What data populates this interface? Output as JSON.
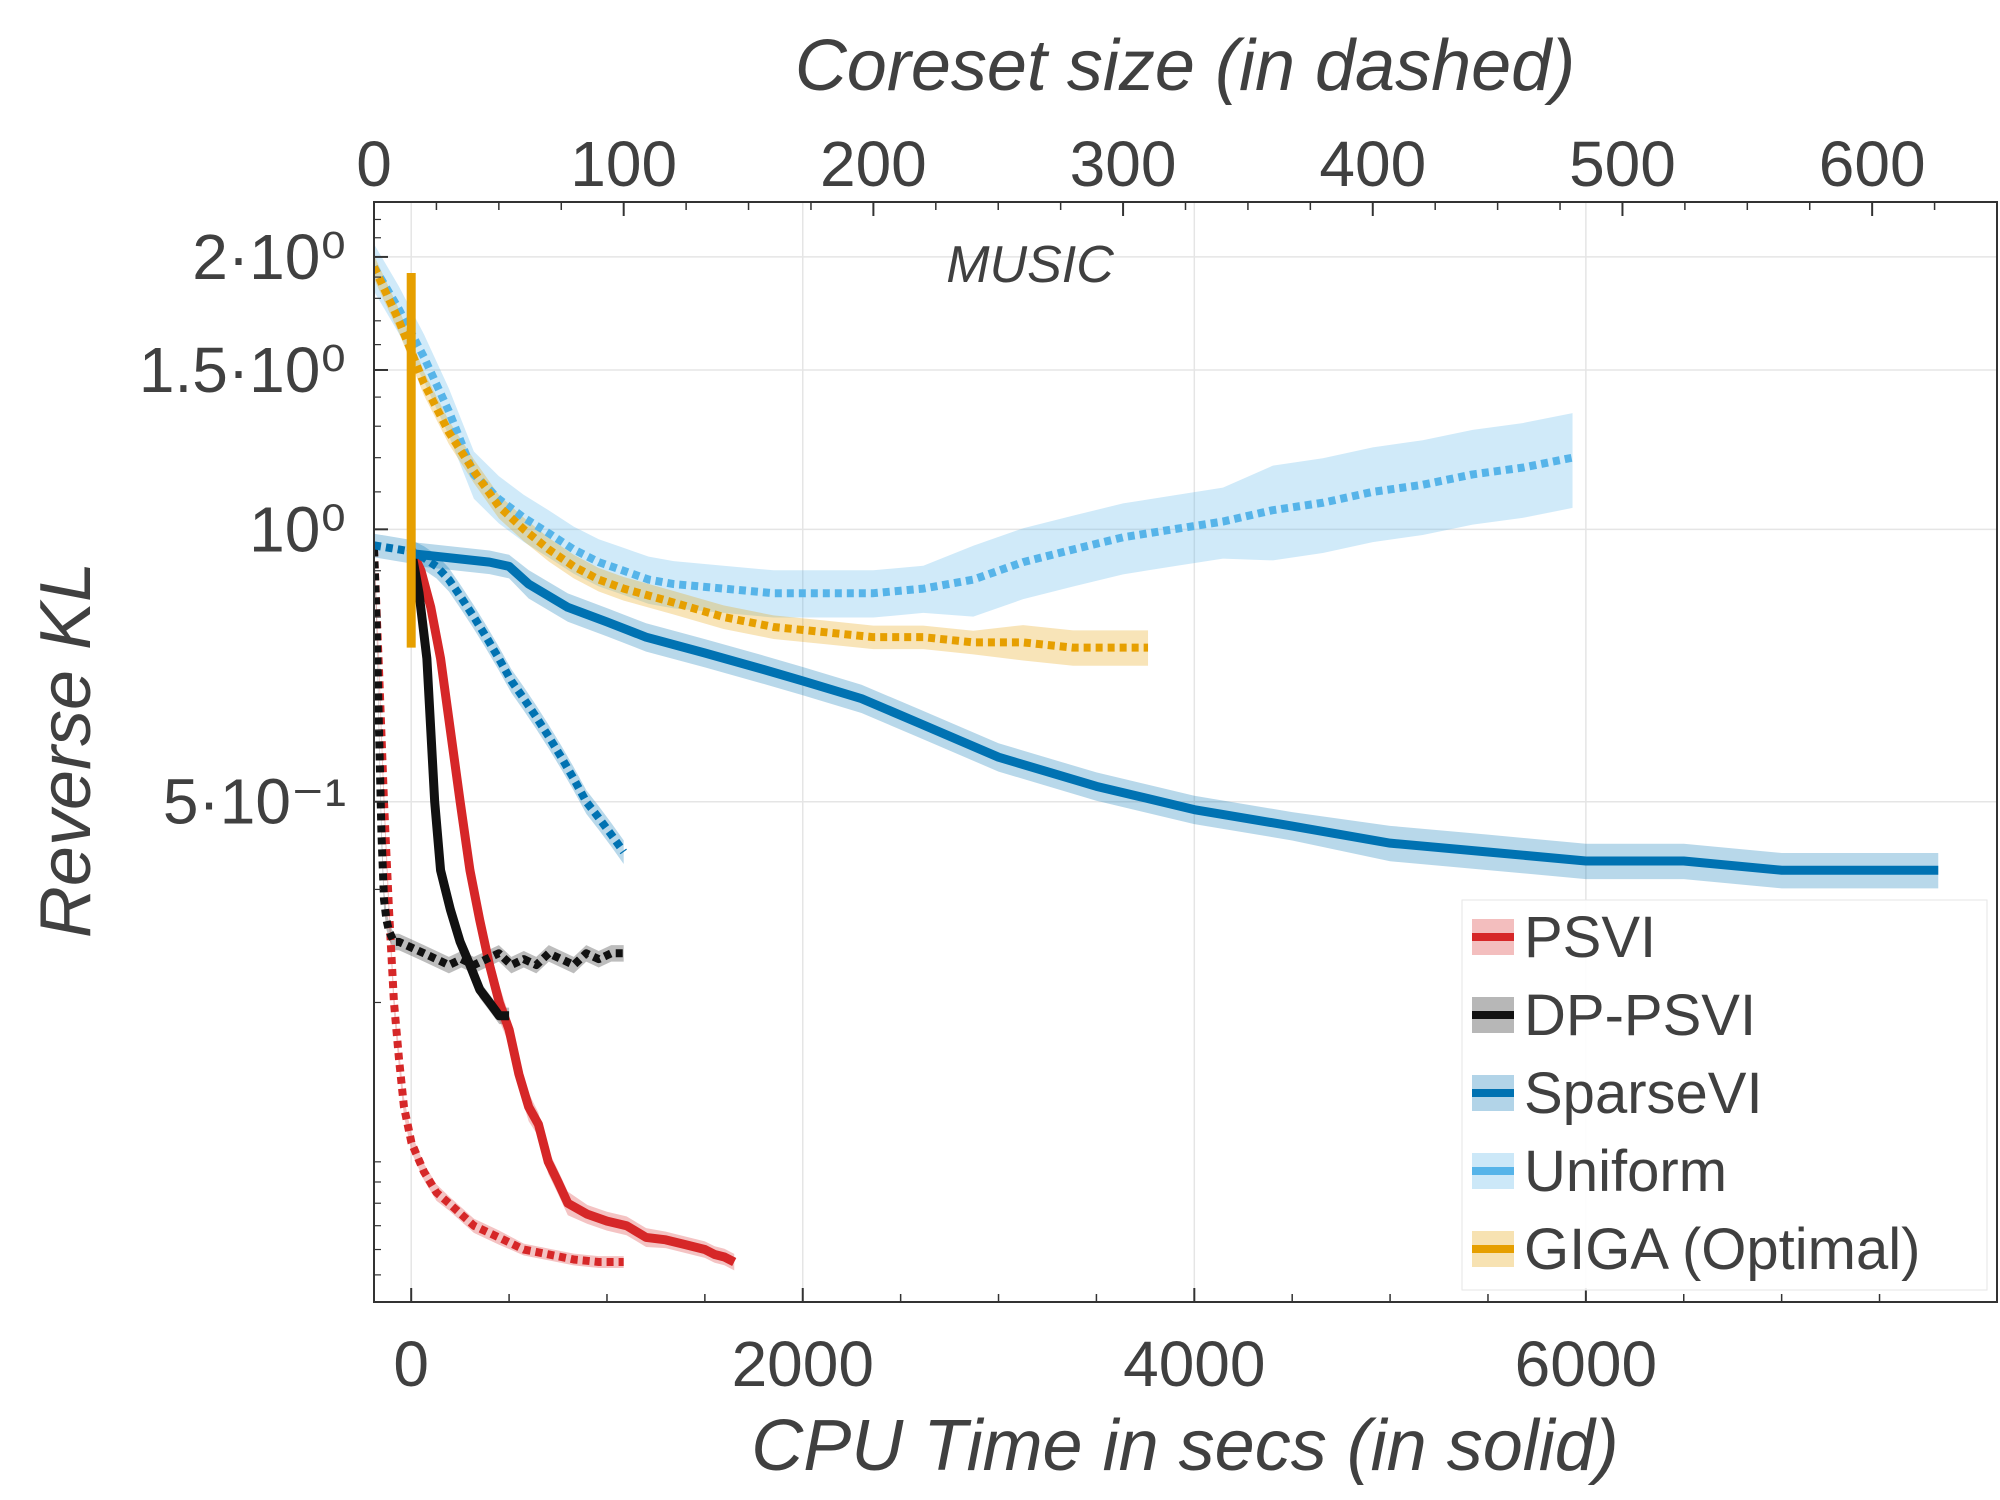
{
  "chart_data": {
    "type": "line",
    "title": "MUSIC",
    "xlabel_bottom": "CPU Time in secs (in solid)",
    "xlabel_top": "Coreset size (in dashed)",
    "ylabel": "Reverse KL",
    "y_scale": "log",
    "grid": true,
    "legend_position": "bottom-right",
    "xlim_bottom": [
      -190,
      8100
    ],
    "xlim_top": [
      0,
      650
    ],
    "ylim": [
      0.14,
      2.3
    ],
    "x_ticks_bottom": [
      0,
      2000,
      4000,
      6000
    ],
    "x_ticks_bottom_labels": [
      "0",
      "2000",
      "4000",
      "6000"
    ],
    "x_ticks_top": [
      0,
      100,
      200,
      300,
      400,
      500,
      600
    ],
    "x_ticks_top_labels": [
      "0",
      "100",
      "200",
      "300",
      "400",
      "500",
      "600"
    ],
    "y_ticks": [
      0.5,
      1.0,
      1.5,
      2.0
    ],
    "y_ticks_labels": [
      "5·10⁻¹",
      "10⁰",
      "1.5·10⁰",
      "2·10⁰"
    ],
    "series": [
      {
        "name": "PSVI",
        "color": "#d62728",
        "solid": {
          "x": [
            0,
            50,
            100,
            150,
            200,
            250,
            300,
            350,
            400,
            450,
            500,
            550,
            600,
            650,
            700,
            750,
            800,
            900,
            1000,
            1100,
            1200,
            1300,
            1400,
            1500,
            1550,
            1600,
            1650
          ],
          "y": [
            0.95,
            0.9,
            0.82,
            0.72,
            0.6,
            0.5,
            0.42,
            0.37,
            0.33,
            0.3,
            0.28,
            0.25,
            0.23,
            0.22,
            0.2,
            0.19,
            0.18,
            0.175,
            0.172,
            0.17,
            0.165,
            0.164,
            0.162,
            0.16,
            0.158,
            0.157,
            0.155
          ],
          "band": [
            0.01,
            0.01,
            0.012,
            0.012,
            0.015,
            0.015,
            0.015,
            0.015,
            0.015,
            0.015,
            0.012,
            0.012,
            0.012,
            0.01,
            0.01,
            0.01,
            0.01,
            0.008,
            0.008,
            0.008,
            0.008,
            0.007,
            0.007,
            0.007,
            0.007,
            0.007,
            0.007
          ]
        },
        "dashed": {
          "x": [
            0,
            2,
            4,
            6,
            8,
            10,
            12,
            15,
            20,
            25,
            30,
            40,
            50,
            60,
            70,
            80,
            90,
            100
          ],
          "y": [
            0.95,
            0.7,
            0.5,
            0.38,
            0.3,
            0.26,
            0.23,
            0.21,
            0.195,
            0.185,
            0.18,
            0.17,
            0.165,
            0.16,
            0.158,
            0.156,
            0.155,
            0.155
          ],
          "band": [
            0.01,
            0.01,
            0.01,
            0.01,
            0.01,
            0.008,
            0.008,
            0.008,
            0.007,
            0.007,
            0.006,
            0.006,
            0.006,
            0.005,
            0.005,
            0.005,
            0.005,
            0.005
          ]
        }
      },
      {
        "name": "DP-PSVI",
        "color": "#111111",
        "solid": {
          "x": [
            0,
            40,
            80,
            100,
            120,
            150,
            200,
            250,
            300,
            350,
            400,
            450,
            500
          ],
          "y": [
            0.95,
            0.85,
            0.72,
            0.6,
            0.5,
            0.42,
            0.38,
            0.35,
            0.33,
            0.31,
            0.3,
            0.29,
            0.29
          ],
          "band": [
            0.01,
            0.01,
            0.01,
            0.01,
            0.01,
            0.008,
            0.008,
            0.007,
            0.007,
            0.007,
            0.007,
            0.007,
            0.007
          ]
        },
        "dashed": {
          "x": [
            0,
            1,
            2,
            3,
            4,
            5,
            6,
            8,
            10,
            15,
            20,
            25,
            30,
            35,
            40,
            45,
            50,
            55,
            60,
            65,
            70,
            75,
            80,
            85,
            90,
            95,
            100
          ],
          "y": [
            0.95,
            0.8,
            0.6,
            0.46,
            0.39,
            0.37,
            0.36,
            0.35,
            0.35,
            0.345,
            0.34,
            0.335,
            0.33,
            0.335,
            0.33,
            0.335,
            0.34,
            0.33,
            0.335,
            0.33,
            0.34,
            0.335,
            0.33,
            0.34,
            0.335,
            0.34,
            0.34
          ],
          "band": [
            0.01,
            0.01,
            0.01,
            0.01,
            0.008,
            0.008,
            0.007,
            0.007,
            0.007,
            0.007,
            0.007,
            0.007,
            0.007,
            0.007,
            0.007,
            0.007,
            0.007,
            0.007,
            0.007,
            0.007,
            0.007,
            0.007,
            0.007,
            0.007,
            0.007,
            0.007,
            0.007
          ]
        }
      },
      {
        "name": "SparseVI",
        "color": "#0072b2",
        "solid": {
          "x": [
            0,
            200,
            400,
            500,
            600,
            800,
            1000,
            1200,
            1500,
            1800,
            2000,
            2300,
            2600,
            3000,
            3500,
            4000,
            4500,
            5000,
            5500,
            6000,
            6500,
            7000,
            7500,
            7800
          ],
          "y": [
            0.94,
            0.93,
            0.92,
            0.91,
            0.87,
            0.82,
            0.79,
            0.76,
            0.73,
            0.7,
            0.68,
            0.65,
            0.61,
            0.56,
            0.52,
            0.49,
            0.47,
            0.45,
            0.44,
            0.43,
            0.43,
            0.42,
            0.42,
            0.42
          ],
          "band": [
            0.01,
            0.01,
            0.01,
            0.01,
            0.012,
            0.012,
            0.012,
            0.012,
            0.012,
            0.012,
            0.012,
            0.012,
            0.012,
            0.012,
            0.012,
            0.012,
            0.012,
            0.015,
            0.015,
            0.015,
            0.015,
            0.015,
            0.015,
            0.015
          ]
        },
        "dashed": {
          "x": [
            0,
            5,
            10,
            15,
            20,
            25,
            30,
            35,
            40,
            45,
            50,
            55,
            60,
            65,
            70,
            75,
            80,
            85,
            90,
            95,
            100
          ],
          "y": [
            0.96,
            0.955,
            0.95,
            0.945,
            0.93,
            0.91,
            0.88,
            0.84,
            0.8,
            0.76,
            0.72,
            0.68,
            0.65,
            0.62,
            0.59,
            0.56,
            0.53,
            0.5,
            0.48,
            0.46,
            0.44
          ],
          "band": [
            0.01,
            0.01,
            0.01,
            0.01,
            0.01,
            0.01,
            0.01,
            0.01,
            0.01,
            0.01,
            0.01,
            0.01,
            0.01,
            0.01,
            0.01,
            0.01,
            0.01,
            0.01,
            0.01,
            0.01,
            0.01
          ]
        }
      },
      {
        "name": "Uniform",
        "color": "#56b4e9",
        "dashed": {
          "x": [
            0,
            10,
            20,
            30,
            40,
            50,
            60,
            70,
            80,
            90,
            100,
            110,
            120,
            140,
            160,
            180,
            200,
            220,
            240,
            260,
            280,
            300,
            320,
            340,
            360,
            380,
            400,
            420,
            440,
            460,
            480
          ],
          "y": [
            1.95,
            1.75,
            1.55,
            1.35,
            1.15,
            1.08,
            1.03,
            0.99,
            0.95,
            0.92,
            0.9,
            0.88,
            0.87,
            0.86,
            0.85,
            0.85,
            0.85,
            0.86,
            0.88,
            0.92,
            0.95,
            0.98,
            1.0,
            1.02,
            1.05,
            1.07,
            1.1,
            1.12,
            1.15,
            1.17,
            1.2
          ],
          "band": [
            0.02,
            0.02,
            0.02,
            0.02,
            0.02,
            0.02,
            0.02,
            0.02,
            0.02,
            0.02,
            0.02,
            0.02,
            0.02,
            0.02,
            0.02,
            0.02,
            0.02,
            0.02,
            0.03,
            0.03,
            0.03,
            0.03,
            0.03,
            0.03,
            0.04,
            0.04,
            0.04,
            0.04,
            0.04,
            0.04,
            0.04
          ]
        }
      },
      {
        "name": "GIGA (Optimal)",
        "color": "#e69f00",
        "solid": {
          "x": [
            0,
            0
          ],
          "y": [
            0.74,
            1.92
          ],
          "band": [
            0,
            0
          ]
        },
        "dashed": {
          "x": [
            0,
            10,
            20,
            30,
            40,
            50,
            60,
            70,
            80,
            90,
            100,
            120,
            140,
            160,
            180,
            200,
            220,
            240,
            260,
            280,
            300,
            310
          ],
          "y": [
            1.95,
            1.7,
            1.45,
            1.28,
            1.16,
            1.06,
            1.0,
            0.95,
            0.91,
            0.88,
            0.86,
            0.83,
            0.8,
            0.78,
            0.77,
            0.76,
            0.76,
            0.75,
            0.75,
            0.74,
            0.74,
            0.74
          ],
          "band": [
            0.01,
            0.01,
            0.01,
            0.01,
            0.01,
            0.01,
            0.01,
            0.01,
            0.01,
            0.01,
            0.01,
            0.01,
            0.01,
            0.01,
            0.01,
            0.01,
            0.01,
            0.01,
            0.015,
            0.015,
            0.015,
            0.015
          ]
        }
      }
    ]
  }
}
